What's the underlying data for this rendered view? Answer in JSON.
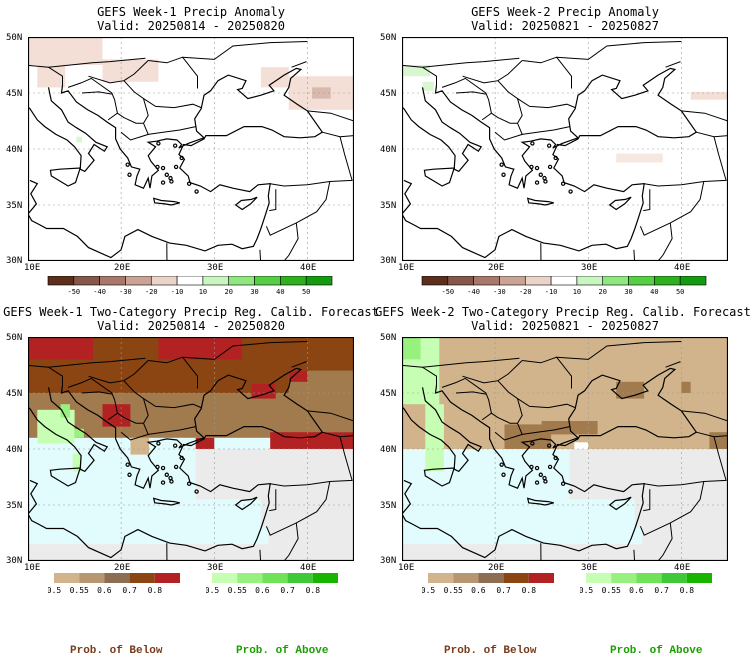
{
  "panels": [
    {
      "title": "GEFS Week-1 Precip Anomaly",
      "valid": "Valid: 20250814 - 20250820"
    },
    {
      "title": "GEFS Week-2 Precip Anomaly",
      "valid": "Valid: 20250821 - 20250827"
    },
    {
      "title": "GEFS Week-1 Two-Category Precip Reg. Calib. Forecast",
      "valid": "Valid: 20250814 - 20250820"
    },
    {
      "title": "GEFS Week-2 Two-Category Precip Reg. Calib. Forecast",
      "valid": "Valid: 20250821 - 20250827"
    }
  ],
  "axes": {
    "lat_labels": [
      "50N",
      "45N",
      "40N",
      "35N",
      "30N"
    ],
    "lon_labels": [
      "10E",
      "20E",
      "30E",
      "40E"
    ]
  },
  "anomaly_legend": {
    "labels": [
      "-50",
      "-40",
      "-30",
      "-20",
      "-10",
      "10",
      "20",
      "30",
      "40",
      "50"
    ],
    "colors": [
      "#5c2f1c",
      "#86584a",
      "#a8796b",
      "#c9a396",
      "#ead3c9",
      "#ffffff",
      "#c8f5c0",
      "#8fe87f",
      "#56cf45",
      "#2fb01f",
      "#149b10"
    ]
  },
  "prob_legend": {
    "below_labels": [
      "0.5",
      "0.55",
      "0.6",
      "0.7",
      "0.8"
    ],
    "above_labels": [
      "0.5",
      "0.55",
      "0.6",
      "0.7",
      "0.8"
    ],
    "below_colors": [
      "#d2b48c",
      "#b79670",
      "#8d6e53",
      "#8b4513",
      "#b22222"
    ],
    "above_colors": [
      "#c6ffb4",
      "#98f07e",
      "#6fe25a",
      "#3fc93a",
      "#19b400"
    ],
    "below_caption": "Prob. of Below",
    "above_caption": "Prob. of Above",
    "below_caption_color": "#7a3b1b",
    "above_caption_color": "#19a000"
  },
  "map_colors": {
    "sea": "#e2fbfc",
    "no_data": "#ebebeb",
    "below_light": "#d2b48c",
    "below_mid": "#a17a4e",
    "below_dark": "#8b4513",
    "below_red": "#b22222",
    "above_light": "#c6ffb4",
    "above_mid": "#98f07e",
    "anom_dry": "#f3dfd6",
    "anom_wet": "#d8f6cf"
  }
}
